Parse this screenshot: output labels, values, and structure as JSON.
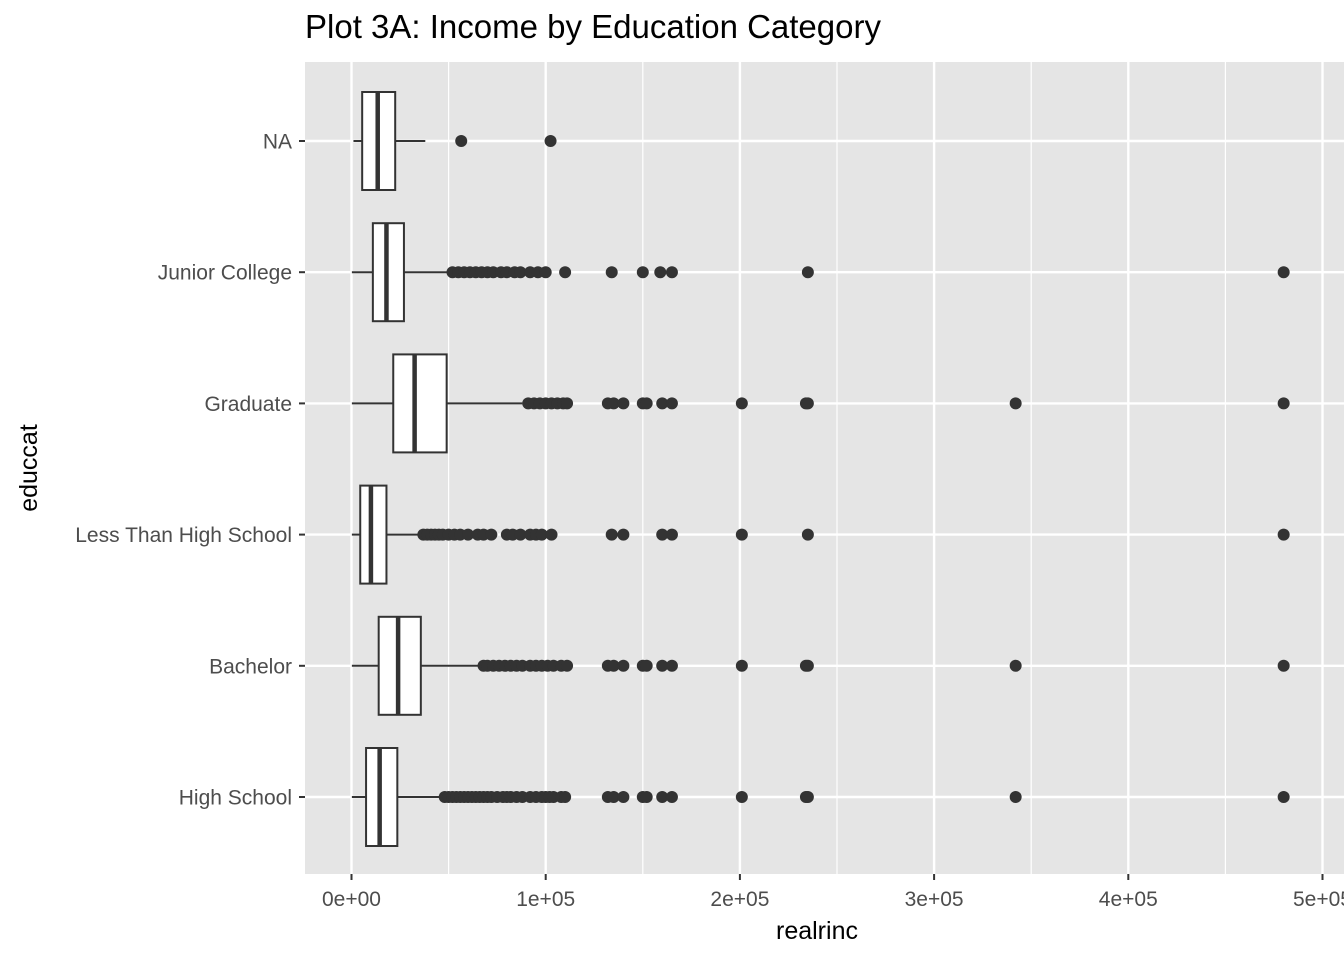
{
  "chart_data": {
    "type": "boxplot",
    "title": "Plot 3A: Income by Education Category",
    "xlabel": "realrinc",
    "ylabel": "educcat",
    "xlim": [
      -24000,
      500000
    ],
    "x_ticks": [
      {
        "value": 0,
        "label": "0e+00"
      },
      {
        "value": 100000,
        "label": "1e+05"
      },
      {
        "value": 200000,
        "label": "2e+05"
      },
      {
        "value": 300000,
        "label": "3e+05"
      },
      {
        "value": 400000,
        "label": "4e+05"
      },
      {
        "value": 500000,
        "label": "5e+05"
      }
    ],
    "grid": true,
    "orientation": "horizontal",
    "colors": {
      "panel_background": "#e5e5e5",
      "grid_line": "#ffffff",
      "box_fill": "#ffffff",
      "box_stroke": "#333333",
      "outlier": "#333333"
    },
    "categories": [
      "High School",
      "Bachelor",
      "Less Than High School",
      "Graduate",
      "Junior College",
      "NA"
    ],
    "boxes": [
      {
        "category": "High School",
        "whisker_low": 200,
        "q1": 7500,
        "median": 14500,
        "q3": 23600,
        "whisker_high": 47000,
        "outliers": [
          48000,
          50000,
          52000,
          54000,
          56000,
          58000,
          60000,
          62000,
          64000,
          66000,
          68000,
          70000,
          72000,
          75000,
          78000,
          80000,
          82000,
          85000,
          88000,
          92000,
          95000,
          98000,
          100000,
          102000,
          104000,
          108000,
          110000,
          132000,
          135000,
          140000,
          150000,
          152000,
          160000,
          165000,
          201000,
          234000,
          235000,
          342000,
          480000
        ]
      },
      {
        "category": "Bachelor",
        "whisker_low": 200,
        "q1": 14000,
        "median": 24000,
        "q3": 35700,
        "whisker_high": 67000,
        "outliers": [
          68000,
          70000,
          73000,
          76000,
          79000,
          82000,
          85000,
          88000,
          92000,
          95000,
          98000,
          101000,
          104000,
          108000,
          111000,
          132000,
          135000,
          140000,
          150000,
          152000,
          160000,
          165000,
          201000,
          234000,
          235000,
          342000,
          480000
        ]
      },
      {
        "category": "Less Than High School",
        "whisker_low": 200,
        "q1": 4500,
        "median": 10000,
        "q3": 18000,
        "whisker_high": 36000,
        "outliers": [
          37000,
          39000,
          41000,
          43000,
          45000,
          47000,
          50000,
          53000,
          56000,
          60000,
          65000,
          68000,
          72000,
          80000,
          83000,
          87000,
          92000,
          95000,
          98000,
          103000,
          134000,
          140000,
          160000,
          165000,
          201000,
          235000,
          480000
        ]
      },
      {
        "category": "Graduate",
        "whisker_low": 200,
        "q1": 21500,
        "median": 32500,
        "q3": 49000,
        "whisker_high": 88000,
        "outliers": [
          91000,
          94000,
          97000,
          100000,
          103000,
          106000,
          109000,
          111000,
          132000,
          135000,
          140000,
          150000,
          152000,
          160000,
          165000,
          201000,
          234000,
          235000,
          342000,
          480000
        ]
      },
      {
        "category": "Junior College",
        "whisker_low": 200,
        "q1": 11000,
        "median": 18000,
        "q3": 27000,
        "whisker_high": 50000,
        "outliers": [
          52000,
          55000,
          58000,
          61000,
          64000,
          67000,
          70000,
          73000,
          77000,
          80000,
          84000,
          87000,
          92000,
          96000,
          100000,
          110000,
          134000,
          150000,
          159000,
          165000,
          235000,
          480000
        ]
      },
      {
        "category": "NA",
        "whisker_low": 1000,
        "q1": 5500,
        "median": 13500,
        "q3": 22500,
        "whisker_high": 38000,
        "outliers": [
          56500,
          102500
        ]
      }
    ]
  }
}
